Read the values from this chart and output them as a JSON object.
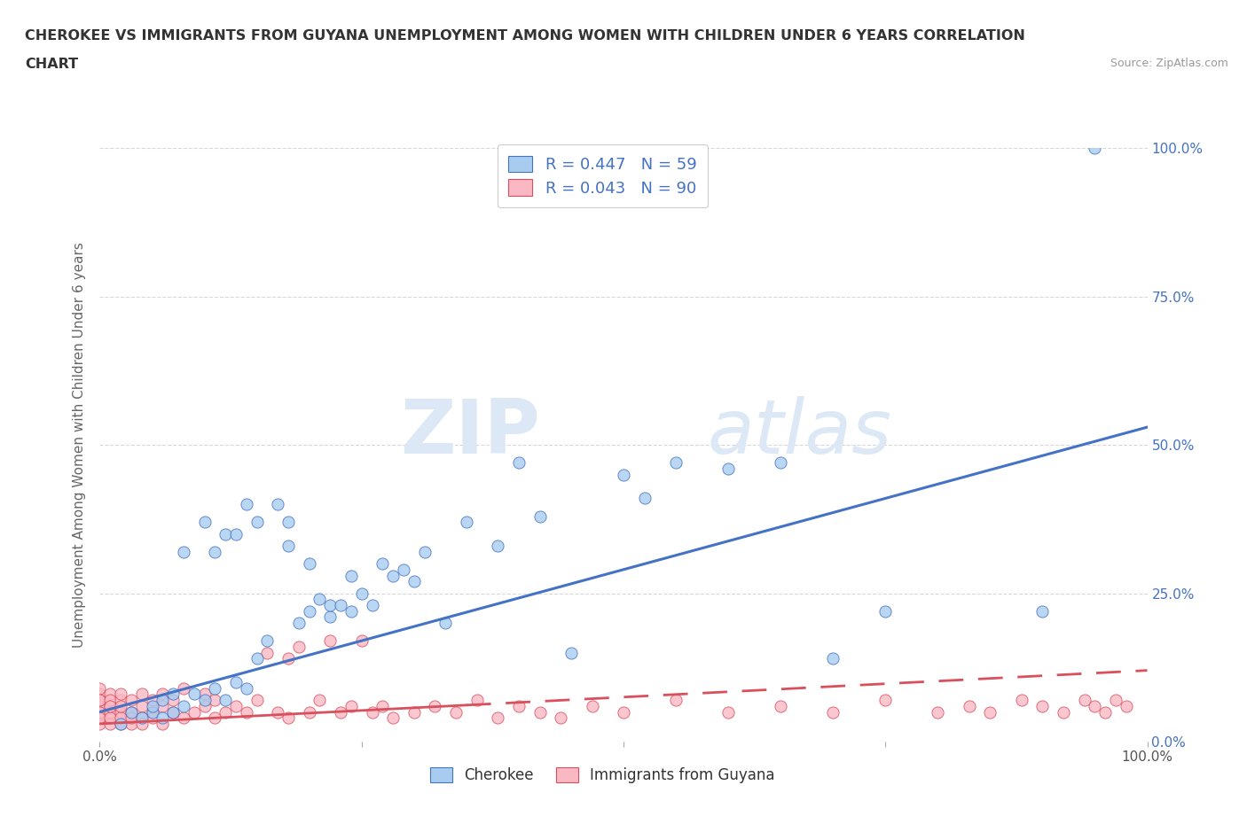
{
  "title_line1": "CHEROKEE VS IMMIGRANTS FROM GUYANA UNEMPLOYMENT AMONG WOMEN WITH CHILDREN UNDER 6 YEARS CORRELATION",
  "title_line2": "CHART",
  "source_text": "Source: ZipAtlas.com",
  "ylabel": "Unemployment Among Women with Children Under 6 years",
  "xlim": [
    0,
    1.0
  ],
  "ylim": [
    0,
    1.0
  ],
  "y_tick_labels_right": [
    "0.0%",
    "25.0%",
    "50.0%",
    "75.0%",
    "100.0%"
  ],
  "cherokee_color": "#a8ccf0",
  "guyana_color": "#f9b8c4",
  "cherokee_line_color": "#4472c4",
  "guyana_line_color": "#d94f5c",
  "cherokee_R": 0.447,
  "cherokee_N": 59,
  "guyana_R": 0.043,
  "guyana_N": 90,
  "watermark_zip": "ZIP",
  "watermark_atlas": "atlas",
  "watermark_color": "#d0dff0",
  "background_color": "#ffffff",
  "grid_color": "#d8d8d8",
  "title_color": "#333333",
  "cherokee_line_intercept": 0.05,
  "cherokee_line_slope": 0.48,
  "guyana_line_intercept": 0.03,
  "guyana_line_slope": 0.09,
  "cherokee_scatter_x": [
    0.02,
    0.03,
    0.04,
    0.05,
    0.05,
    0.06,
    0.06,
    0.07,
    0.07,
    0.08,
    0.08,
    0.09,
    0.1,
    0.1,
    0.11,
    0.11,
    0.12,
    0.12,
    0.13,
    0.13,
    0.14,
    0.14,
    0.15,
    0.15,
    0.16,
    0.17,
    0.18,
    0.18,
    0.19,
    0.2,
    0.2,
    0.21,
    0.22,
    0.22,
    0.23,
    0.24,
    0.24,
    0.25,
    0.26,
    0.27,
    0.28,
    0.29,
    0.3,
    0.31,
    0.33,
    0.35,
    0.38,
    0.4,
    0.42,
    0.45,
    0.5,
    0.52,
    0.55,
    0.6,
    0.65,
    0.7,
    0.75,
    0.9,
    0.95
  ],
  "cherokee_scatter_y": [
    0.03,
    0.05,
    0.04,
    0.05,
    0.06,
    0.04,
    0.07,
    0.05,
    0.08,
    0.06,
    0.32,
    0.08,
    0.07,
    0.37,
    0.09,
    0.32,
    0.07,
    0.35,
    0.1,
    0.35,
    0.09,
    0.4,
    0.14,
    0.37,
    0.17,
    0.4,
    0.33,
    0.37,
    0.2,
    0.22,
    0.3,
    0.24,
    0.21,
    0.23,
    0.23,
    0.22,
    0.28,
    0.25,
    0.23,
    0.3,
    0.28,
    0.29,
    0.27,
    0.32,
    0.2,
    0.37,
    0.33,
    0.47,
    0.38,
    0.15,
    0.45,
    0.41,
    0.47,
    0.46,
    0.47,
    0.14,
    0.22,
    0.22,
    1.0
  ],
  "guyana_scatter_x": [
    0.0,
    0.0,
    0.0,
    0.0,
    0.0,
    0.0,
    0.0,
    0.0,
    0.0,
    0.0,
    0.01,
    0.01,
    0.01,
    0.01,
    0.01,
    0.01,
    0.01,
    0.02,
    0.02,
    0.02,
    0.02,
    0.02,
    0.02,
    0.03,
    0.03,
    0.03,
    0.03,
    0.04,
    0.04,
    0.04,
    0.04,
    0.05,
    0.05,
    0.05,
    0.06,
    0.06,
    0.06,
    0.07,
    0.07,
    0.08,
    0.08,
    0.09,
    0.1,
    0.1,
    0.11,
    0.11,
    0.12,
    0.13,
    0.14,
    0.15,
    0.16,
    0.17,
    0.18,
    0.18,
    0.19,
    0.2,
    0.21,
    0.22,
    0.23,
    0.24,
    0.25,
    0.26,
    0.27,
    0.28,
    0.3,
    0.32,
    0.34,
    0.36,
    0.38,
    0.4,
    0.42,
    0.44,
    0.47,
    0.5,
    0.55,
    0.6,
    0.65,
    0.7,
    0.75,
    0.8,
    0.83,
    0.85,
    0.88,
    0.9,
    0.92,
    0.94,
    0.95,
    0.96,
    0.97,
    0.98
  ],
  "guyana_scatter_y": [
    0.05,
    0.08,
    0.06,
    0.04,
    0.07,
    0.03,
    0.09,
    0.05,
    0.07,
    0.04,
    0.06,
    0.03,
    0.08,
    0.05,
    0.07,
    0.04,
    0.06,
    0.05,
    0.03,
    0.07,
    0.04,
    0.06,
    0.08,
    0.05,
    0.03,
    0.07,
    0.04,
    0.06,
    0.04,
    0.08,
    0.03,
    0.05,
    0.07,
    0.04,
    0.06,
    0.03,
    0.08,
    0.05,
    0.07,
    0.04,
    0.09,
    0.05,
    0.06,
    0.08,
    0.04,
    0.07,
    0.05,
    0.06,
    0.05,
    0.07,
    0.15,
    0.05,
    0.14,
    0.04,
    0.16,
    0.05,
    0.07,
    0.17,
    0.05,
    0.06,
    0.17,
    0.05,
    0.06,
    0.04,
    0.05,
    0.06,
    0.05,
    0.07,
    0.04,
    0.06,
    0.05,
    0.04,
    0.06,
    0.05,
    0.07,
    0.05,
    0.06,
    0.05,
    0.07,
    0.05,
    0.06,
    0.05,
    0.07,
    0.06,
    0.05,
    0.07,
    0.06,
    0.05,
    0.07,
    0.06
  ]
}
